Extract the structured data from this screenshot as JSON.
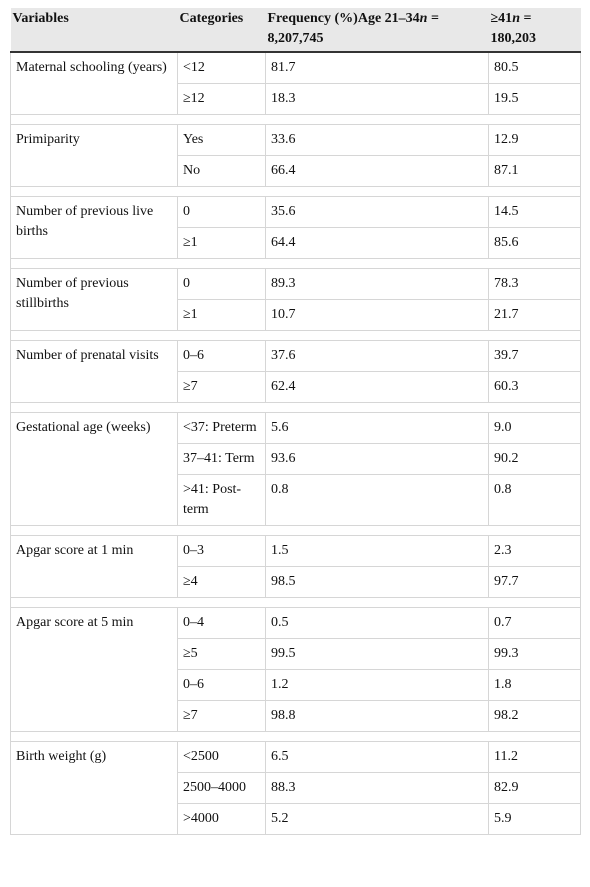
{
  "header": [
    [
      "Variables"
    ],
    [
      "Categories"
    ],
    [
      "Frequency (%)Age 21–34",
      "n",
      " = 8,207,745"
    ],
    [
      "≥41",
      "n",
      " = 180,203"
    ]
  ],
  "groups": [
    {
      "variable": "Maternal schooling (years)",
      "rows": [
        [
          "<12",
          "81.7",
          "80.5"
        ],
        [
          "≥12",
          "18.3",
          "19.5"
        ]
      ]
    },
    {
      "variable": "Primiparity",
      "rows": [
        [
          "Yes",
          "33.6",
          "12.9"
        ],
        [
          "No",
          "66.4",
          "87.1"
        ]
      ]
    },
    {
      "variable": "Number of previous live births",
      "rows": [
        [
          "0",
          "35.6",
          "14.5"
        ],
        [
          "≥1",
          "64.4",
          "85.6"
        ]
      ]
    },
    {
      "variable": "Number of previous stillbirths",
      "rows": [
        [
          "0",
          "89.3",
          "78.3"
        ],
        [
          "≥1",
          "10.7",
          "21.7"
        ]
      ]
    },
    {
      "variable": "Number of prenatal visits",
      "rows": [
        [
          "0–6",
          "37.6",
          "39.7"
        ],
        [
          "≥7",
          "62.4",
          "60.3"
        ]
      ]
    },
    {
      "variable": "Gestational age (weeks)",
      "rows": [
        [
          "<37: Preterm",
          "5.6",
          "9.0"
        ],
        [
          "37–41: Term",
          "93.6",
          "90.2"
        ],
        [
          ">41: Post-term",
          "0.8",
          "0.8"
        ]
      ]
    },
    {
      "variable": "Apgar score at 1 min",
      "rows": [
        [
          "0–3",
          "1.5",
          "2.3"
        ],
        [
          "≥4",
          "98.5",
          "97.7"
        ]
      ]
    },
    {
      "variable": "Apgar score at 5 min",
      "rows": [
        [
          "0–4",
          "0.5",
          "0.7"
        ],
        [
          "≥5",
          "99.5",
          "99.3"
        ],
        [
          "0–6",
          "1.2",
          "1.8"
        ],
        [
          "≥7",
          "98.8",
          "98.2"
        ]
      ]
    },
    {
      "variable": "Birth weight (g)",
      "rows": [
        [
          "<2500",
          "6.5",
          "11.2"
        ],
        [
          "2500–4000",
          "88.3",
          "82.9"
        ],
        [
          ">4000",
          "5.2",
          "5.9"
        ]
      ]
    }
  ]
}
